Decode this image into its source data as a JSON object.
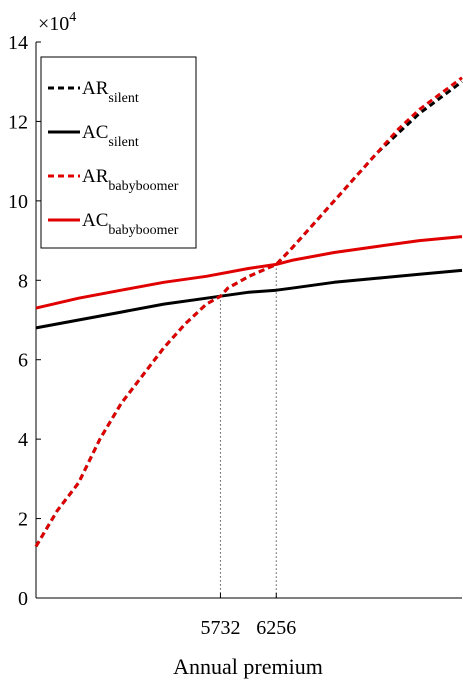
{
  "chart_data": {
    "type": "line",
    "xlabel": "Annual premium",
    "ylabel": "",
    "y_exponent_label": "×10",
    "y_exponent_power": "4",
    "xlim": [
      4000,
      8000
    ],
    "ylim": [
      0,
      14
    ],
    "x_ticks": [
      5732,
      6256
    ],
    "y_ticks": [
      0,
      2,
      4,
      6,
      8,
      10,
      12,
      14
    ],
    "grid": false,
    "legend_position": "top-left",
    "series": [
      {
        "name_main": "AR",
        "name_sub": "silent",
        "color": "#000000",
        "dash": true,
        "x": [
          4000,
          4200,
          4400,
          4600,
          4800,
          5000,
          5200,
          5400,
          5600,
          5732,
          5800,
          6000,
          6256,
          6400,
          6600,
          6800,
          7000,
          7200,
          7400,
          7600,
          7800,
          8000
        ],
        "y": [
          1.3,
          2.2,
          2.9,
          4.0,
          4.9,
          5.6,
          6.3,
          6.9,
          7.4,
          7.6,
          7.8,
          8.1,
          8.4,
          8.8,
          9.4,
          10.0,
          10.6,
          11.2,
          11.7,
          12.2,
          12.6,
          13.0
        ]
      },
      {
        "name_main": "AC",
        "name_sub": "silent",
        "color": "#000000",
        "dash": false,
        "x": [
          4000,
          4400,
          4800,
          5200,
          5600,
          5732,
          6000,
          6256,
          6400,
          6800,
          7200,
          7600,
          8000
        ],
        "y": [
          6.8,
          7.0,
          7.2,
          7.4,
          7.55,
          7.6,
          7.7,
          7.75,
          7.8,
          7.95,
          8.05,
          8.15,
          8.25
        ]
      },
      {
        "name_main": "AR",
        "name_sub": "babyboomer",
        "color": "#e00000",
        "dash": true,
        "x": [
          4000,
          4200,
          4400,
          4600,
          4800,
          5000,
          5200,
          5400,
          5600,
          5732,
          5800,
          6000,
          6256,
          6400,
          6600,
          6800,
          7000,
          7200,
          7400,
          7600,
          7800,
          8000
        ],
        "y": [
          1.3,
          2.2,
          2.9,
          4.0,
          4.9,
          5.6,
          6.3,
          6.9,
          7.4,
          7.6,
          7.8,
          8.1,
          8.4,
          8.8,
          9.4,
          10.0,
          10.6,
          11.2,
          11.8,
          12.3,
          12.7,
          13.1
        ]
      },
      {
        "name_main": "AC",
        "name_sub": "babyboomer",
        "color": "#e00000",
        "dash": false,
        "x": [
          4000,
          4400,
          4800,
          5200,
          5600,
          6000,
          6256,
          6400,
          6800,
          7200,
          7600,
          8000
        ],
        "y": [
          7.3,
          7.55,
          7.75,
          7.95,
          8.1,
          8.3,
          8.4,
          8.5,
          8.7,
          8.85,
          9.0,
          9.1
        ]
      }
    ],
    "vertical_markers": [
      {
        "x": 5732,
        "y": 7.6
      },
      {
        "x": 6256,
        "y": 8.4
      }
    ]
  }
}
